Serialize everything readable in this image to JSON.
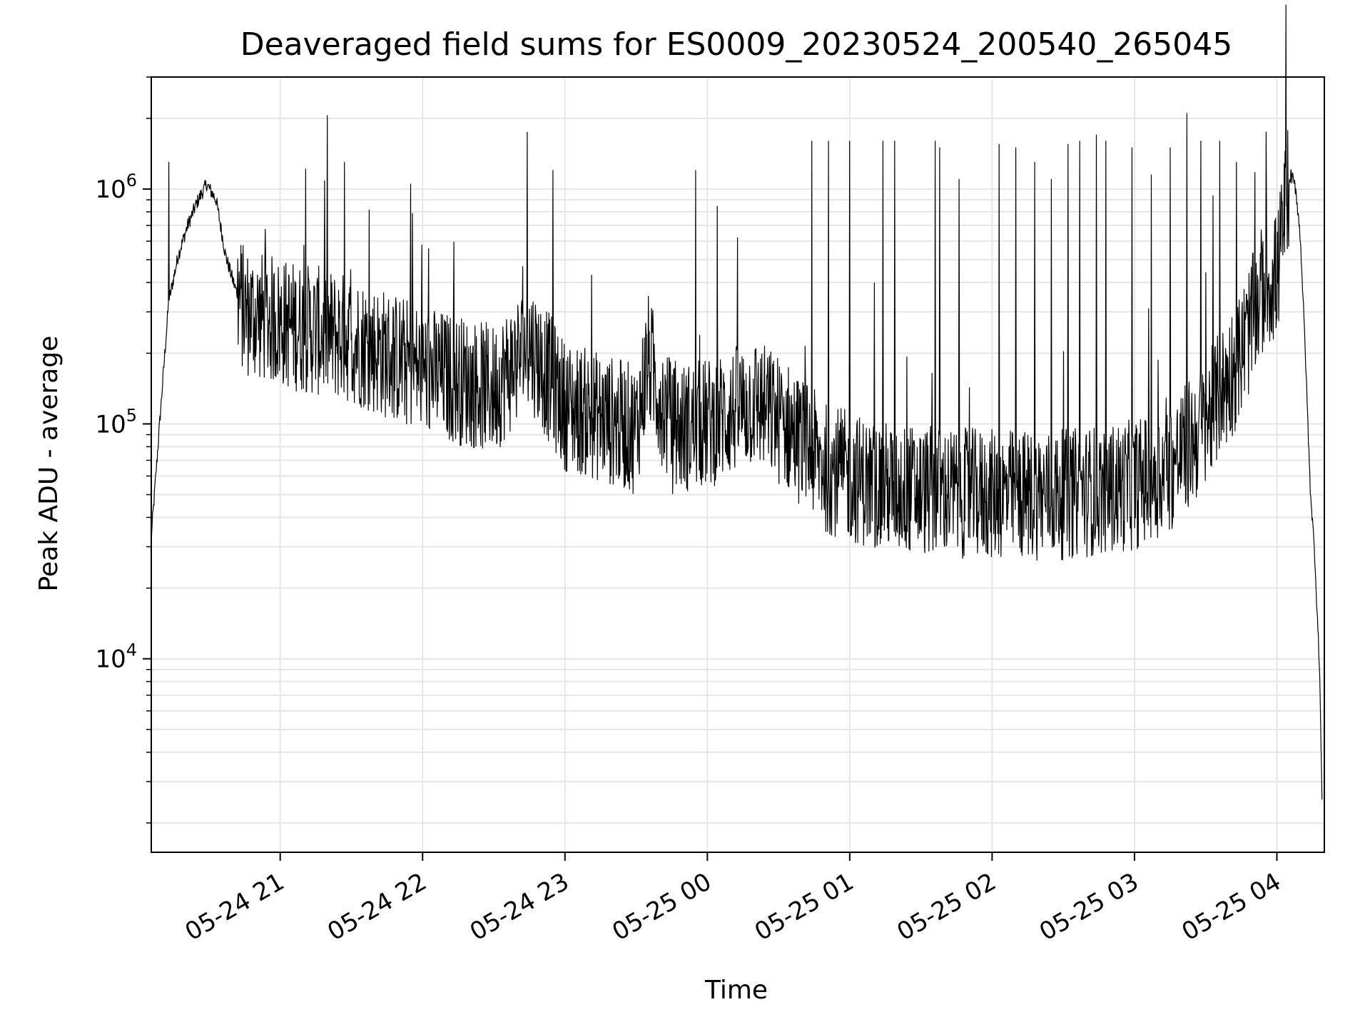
{
  "chart_data": {
    "type": "line",
    "title": "Deaveraged field sums for ES0009_20230524_200540_265045",
    "xlabel": "Time",
    "ylabel": "Peak ADU - average",
    "yscale": "log",
    "ylim": [
      1500,
      3000000
    ],
    "xlim": [
      "2023-05-24 20:05:40",
      "2023-05-25 04:20:00"
    ],
    "x_ticks": [
      {
        "time": "2023-05-24 21:00",
        "label": "05-24 21"
      },
      {
        "time": "2023-05-24 22:00",
        "label": "05-24 22"
      },
      {
        "time": "2023-05-24 23:00",
        "label": "05-24 23"
      },
      {
        "time": "2023-05-25 00:00",
        "label": "05-25 00"
      },
      {
        "time": "2023-05-25 01:00",
        "label": "05-25 01"
      },
      {
        "time": "2023-05-25 02:00",
        "label": "05-25 02"
      },
      {
        "time": "2023-05-25 03:00",
        "label": "05-25 03"
      },
      {
        "time": "2023-05-25 04:00",
        "label": "05-25 04"
      }
    ],
    "y_ticks": [
      {
        "value": 10000,
        "base": "10",
        "exp": "4"
      },
      {
        "value": 100000,
        "base": "10",
        "exp": "5"
      },
      {
        "value": 1000000,
        "base": "10",
        "exp": "6"
      }
    ],
    "grid": true,
    "line_color": "#000000",
    "grid_color": "#e6e6e6",
    "series": [
      {
        "x": [
          "2023-05-24 20:05:40",
          "2023-05-24 20:07",
          "2023-05-24 20:10",
          "2023-05-24 20:13",
          "2023-05-24 20:17",
          "2023-05-24 20:21",
          "2023-05-24 20:25",
          "2023-05-24 20:29",
          "2023-05-24 20:33",
          "2023-05-24 20:37",
          "2023-05-24 20:41",
          "2023-05-24 20:45",
          "2023-05-24 21:00",
          "2023-05-24 21:30",
          "2023-05-24 22:00",
          "2023-05-24 22:30",
          "2023-05-24 22:45",
          "2023-05-24 23:00",
          "2023-05-24 23:30",
          "2023-05-24 23:35",
          "2023-05-24 23:45",
          "2023-05-25 00:00",
          "2023-05-25 00:20",
          "2023-05-25 00:35",
          "2023-05-25 00:50",
          "2023-05-25 01:10",
          "2023-05-25 01:30",
          "2023-05-25 02:00",
          "2023-05-25 02:30",
          "2023-05-25 03:00",
          "2023-05-25 03:15",
          "2023-05-25 03:30",
          "2023-05-25 03:45",
          "2023-05-25 03:55",
          "2023-05-25 04:00",
          "2023-05-25 04:02",
          "2023-05-25 04:04",
          "2023-05-25 04:06",
          "2023-05-25 04:08",
          "2023-05-25 04:10",
          "2023-05-25 04:12",
          "2023-05-25 04:14",
          "2023-05-25 04:16",
          "2023-05-25 04:18",
          "2023-05-25 04:19"
        ],
        "y": [
          33000,
          50000,
          130000,
          330000,
          520000,
          700000,
          880000,
          1050000,
          900000,
          520000,
          380000,
          300000,
          270000,
          230000,
          170000,
          140000,
          220000,
          120000,
          95000,
          190000,
          95000,
          100000,
          125000,
          95000,
          65000,
          55000,
          52000,
          50000,
          50000,
          55000,
          65000,
          100000,
          200000,
          400000,
          420000,
          600000,
          950000,
          1150000,
          1000000,
          600000,
          200000,
          55000,
          27000,
          9000,
          2600
        ]
      }
    ],
    "spikes": [
      {
        "x": "2023-05-25 00:44",
        "y": 1600000
      },
      {
        "x": "2023-05-25 00:51",
        "y": 1600000
      },
      {
        "x": "2023-05-25 01:00",
        "y": 1600000
      },
      {
        "x": "2023-05-25 01:14",
        "y": 1600000
      },
      {
        "x": "2023-05-25 01:19",
        "y": 1600000
      },
      {
        "x": "2023-05-25 01:36",
        "y": 1600000
      },
      {
        "x": "2023-05-25 01:38",
        "y": 1500000
      },
      {
        "x": "2023-05-25 01:46",
        "y": 1100000
      },
      {
        "x": "2023-05-25 02:03",
        "y": 1550000
      },
      {
        "x": "2023-05-25 02:10",
        "y": 1500000
      },
      {
        "x": "2023-05-25 02:18",
        "y": 1300000
      },
      {
        "x": "2023-05-25 02:25",
        "y": 1100000
      },
      {
        "x": "2023-05-25 02:32",
        "y": 1550000
      },
      {
        "x": "2023-05-25 02:37",
        "y": 1600000
      },
      {
        "x": "2023-05-25 02:44",
        "y": 1700000
      },
      {
        "x": "2023-05-25 02:48",
        "y": 1600000
      },
      {
        "x": "2023-05-25 02:59",
        "y": 1500000
      },
      {
        "x": "2023-05-25 03:07",
        "y": 1150000
      },
      {
        "x": "2023-05-25 03:15",
        "y": 1500000
      },
      {
        "x": "2023-05-25 03:22",
        "y": 2100000
      },
      {
        "x": "2023-05-25 03:28",
        "y": 1600000
      },
      {
        "x": "2023-05-25 03:36",
        "y": 1600000
      },
      {
        "x": "2023-05-25 03:43",
        "y": 1300000
      },
      {
        "x": "2023-05-24 21:27",
        "y": 1300000
      },
      {
        "x": "2023-05-24 21:55",
        "y": 1050000
      },
      {
        "x": "2023-05-24 22:55",
        "y": 1200000
      },
      {
        "x": "2023-05-24 23:55",
        "y": 1200000
      },
      {
        "x": "2023-05-24 20:13",
        "y": 1300000
      }
    ]
  }
}
